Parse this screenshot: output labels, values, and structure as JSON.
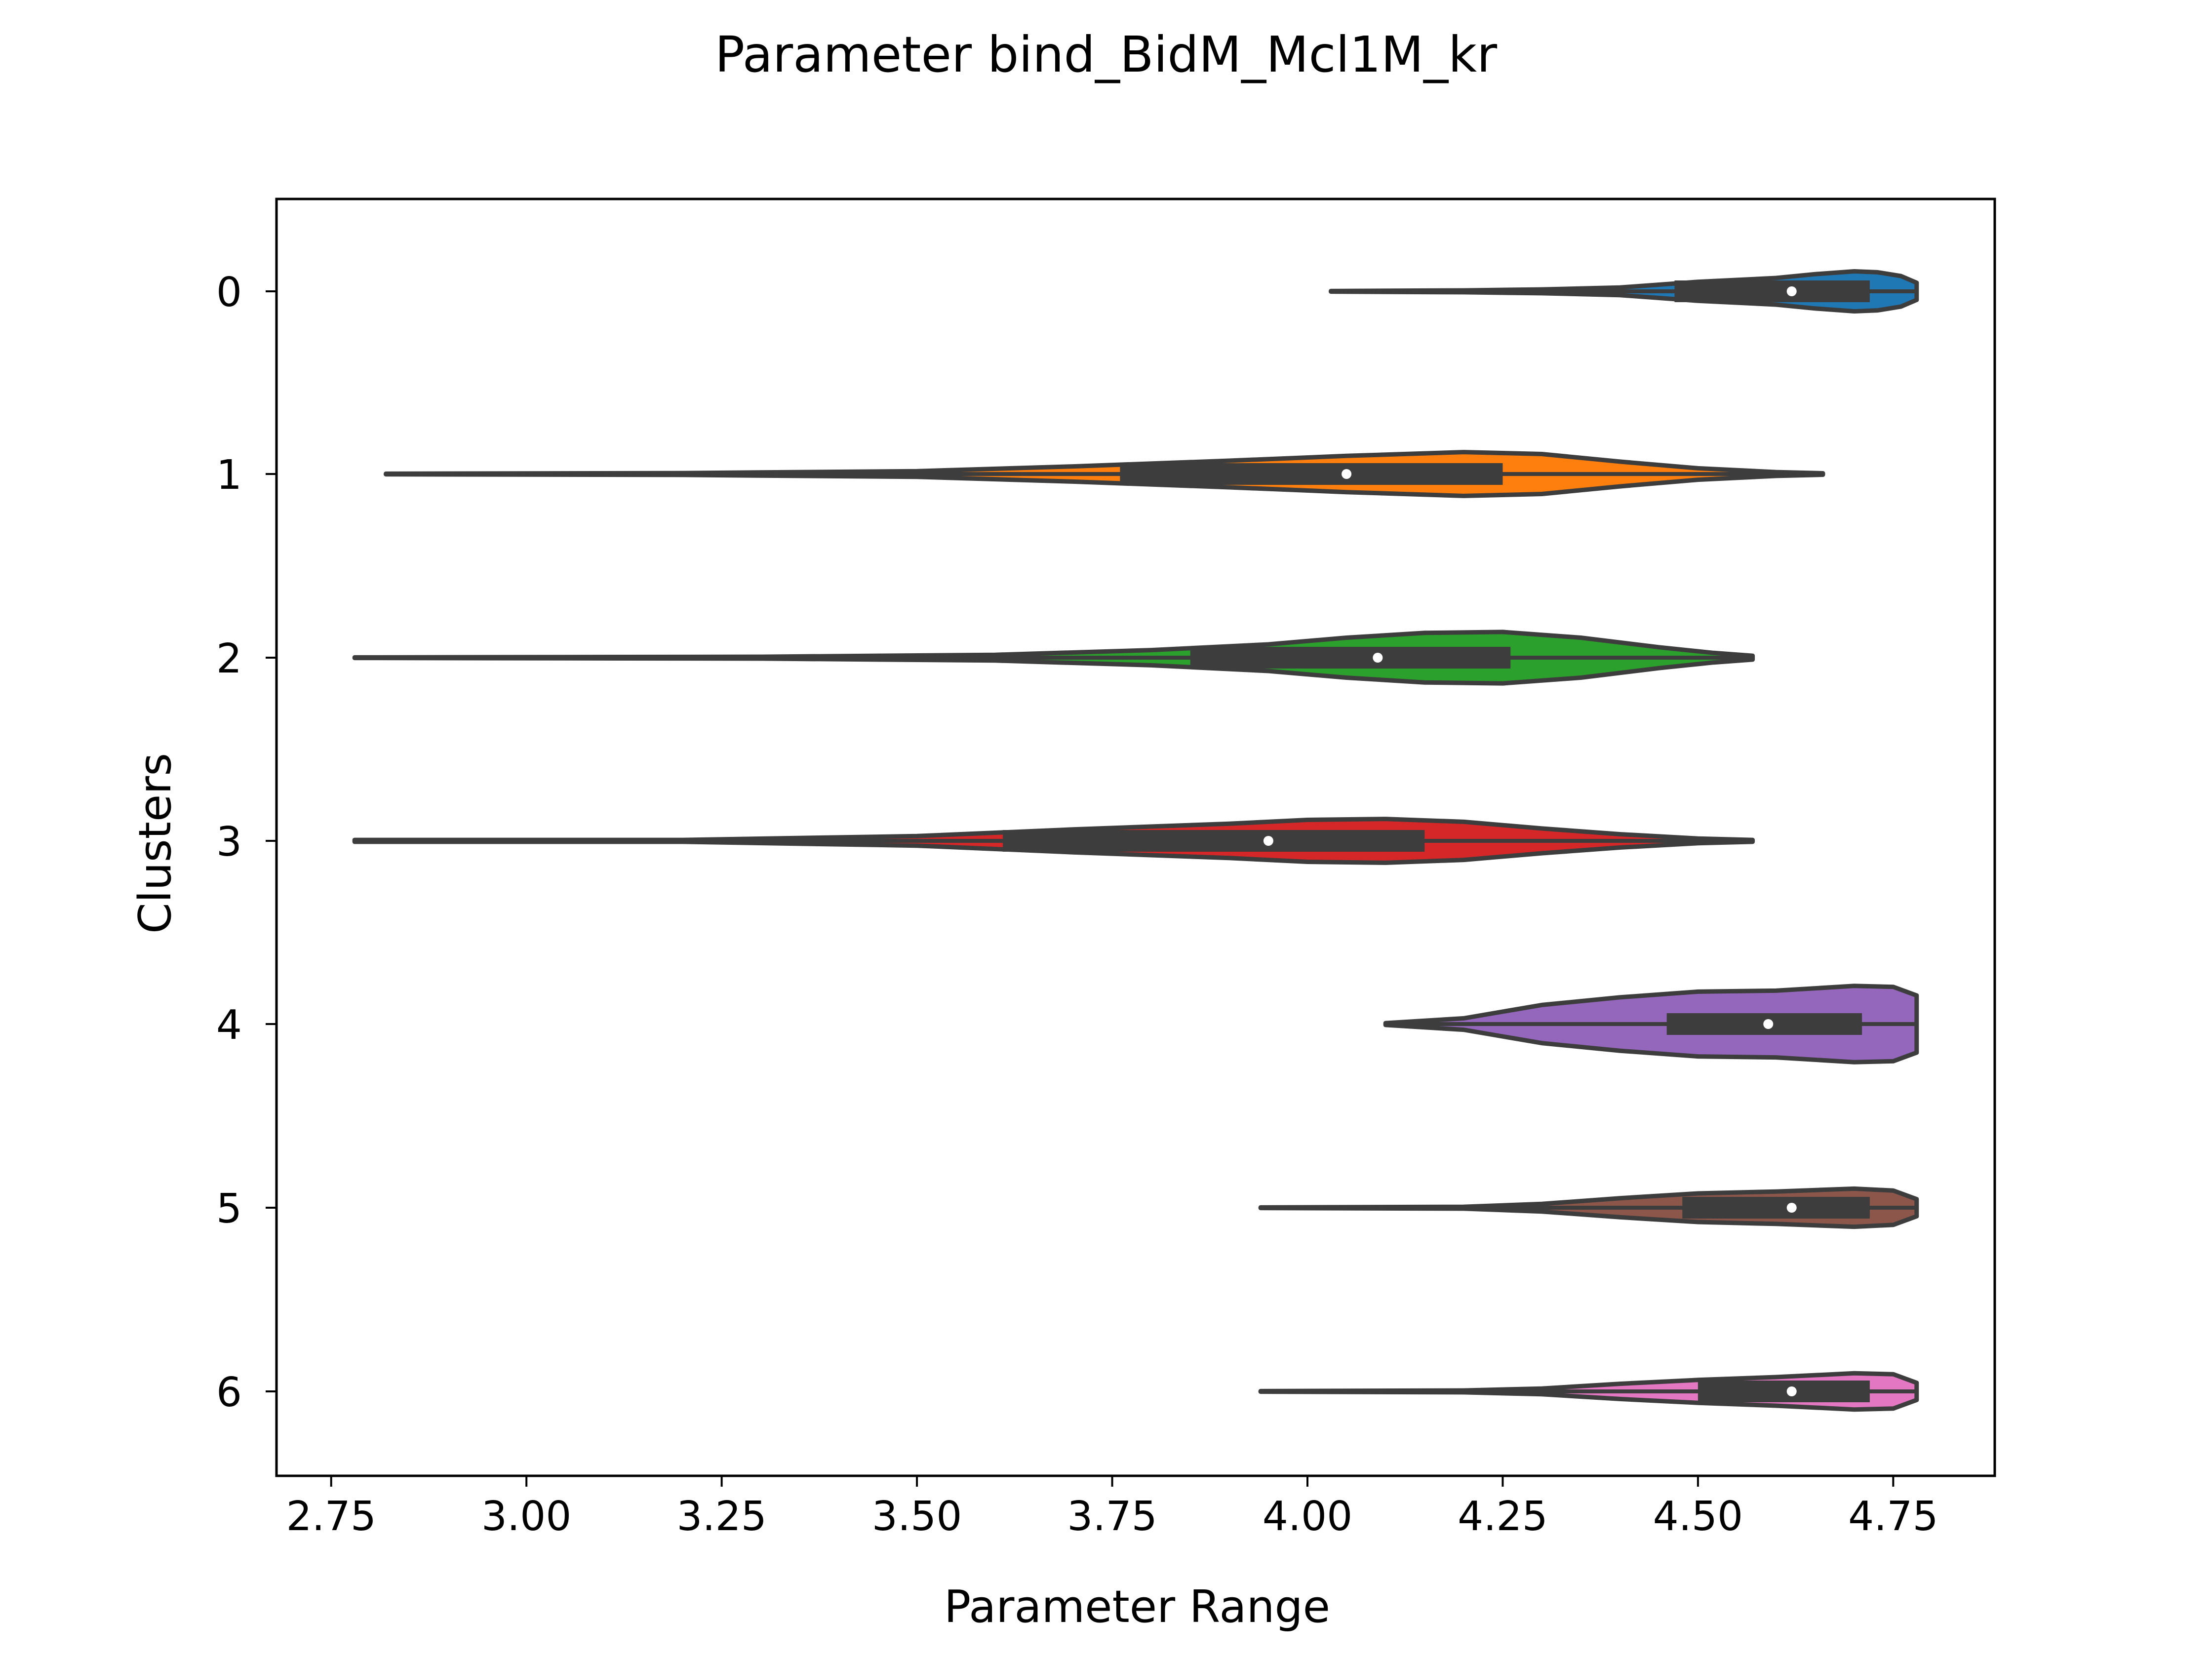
{
  "chart_data": {
    "type": "violin",
    "orientation": "horizontal",
    "title": "Parameter bind_BidM_Mcl1M_kr",
    "xlabel": "Parameter Range",
    "ylabel": "Clusters",
    "xlim": [
      2.68,
      4.88
    ],
    "x_ticks": [
      2.75,
      3.0,
      3.25,
      3.5,
      3.75,
      4.0,
      4.25,
      4.5,
      4.75
    ],
    "x_tick_labels": [
      "2.75",
      "3.00",
      "3.25",
      "3.50",
      "3.75",
      "4.00",
      "4.25",
      "4.50",
      "4.75"
    ],
    "categories": [
      "0",
      "1",
      "2",
      "3",
      "4",
      "5",
      "6"
    ],
    "grid": false,
    "legend": "none",
    "series": [
      {
        "category": "0",
        "color": "#1f77b4",
        "min": 4.03,
        "q1": 4.47,
        "median": 4.62,
        "q3": 4.72,
        "max": 4.78,
        "lower_whisker": 4.03,
        "upper_whisker": 4.78,
        "density": [
          [
            4.03,
            0.003
          ],
          [
            4.2,
            0.01
          ],
          [
            4.3,
            0.02
          ],
          [
            4.4,
            0.04
          ],
          [
            4.5,
            0.1
          ],
          [
            4.6,
            0.14
          ],
          [
            4.65,
            0.18
          ],
          [
            4.7,
            0.21
          ],
          [
            4.73,
            0.2
          ],
          [
            4.76,
            0.16
          ],
          [
            4.78,
            0.09
          ]
        ]
      },
      {
        "category": "1",
        "color": "#ff7f0e",
        "min": 2.82,
        "q1": 3.76,
        "median": 4.05,
        "q3": 4.25,
        "max": 4.66,
        "lower_whisker": 2.82,
        "upper_whisker": 4.66,
        "density": [
          [
            2.82,
            0.003
          ],
          [
            3.2,
            0.01
          ],
          [
            3.5,
            0.03
          ],
          [
            3.7,
            0.08
          ],
          [
            3.9,
            0.14
          ],
          [
            4.05,
            0.19
          ],
          [
            4.2,
            0.23
          ],
          [
            4.3,
            0.21
          ],
          [
            4.4,
            0.13
          ],
          [
            4.5,
            0.06
          ],
          [
            4.6,
            0.02
          ],
          [
            4.66,
            0.008
          ]
        ]
      },
      {
        "category": "2",
        "color": "#2ca02c",
        "min": 2.78,
        "q1": 3.85,
        "median": 4.09,
        "q3": 4.26,
        "max": 4.57,
        "lower_whisker": 2.78,
        "upper_whisker": 4.57,
        "density": [
          [
            2.78,
            0.003
          ],
          [
            3.3,
            0.01
          ],
          [
            3.6,
            0.03
          ],
          [
            3.8,
            0.08
          ],
          [
            3.95,
            0.14
          ],
          [
            4.05,
            0.21
          ],
          [
            4.15,
            0.26
          ],
          [
            4.25,
            0.27
          ],
          [
            4.35,
            0.21
          ],
          [
            4.45,
            0.11
          ],
          [
            4.52,
            0.05
          ],
          [
            4.57,
            0.02
          ]
        ]
      },
      {
        "category": "3",
        "color": "#d62728",
        "min": 2.78,
        "q1": 3.61,
        "median": 3.95,
        "q3": 4.15,
        "max": 4.57,
        "lower_whisker": 2.78,
        "upper_whisker": 4.57,
        "density": [
          [
            2.78,
            0.01
          ],
          [
            3.2,
            0.01
          ],
          [
            3.5,
            0.05
          ],
          [
            3.7,
            0.12
          ],
          [
            3.9,
            0.18
          ],
          [
            4.0,
            0.22
          ],
          [
            4.1,
            0.23
          ],
          [
            4.2,
            0.2
          ],
          [
            4.3,
            0.13
          ],
          [
            4.4,
            0.07
          ],
          [
            4.5,
            0.025
          ],
          [
            4.57,
            0.01
          ]
        ]
      },
      {
        "category": "4",
        "color": "#9467bd",
        "min": 4.1,
        "q1": 4.46,
        "median": 4.59,
        "q3": 4.71,
        "max": 4.78,
        "lower_whisker": 4.1,
        "upper_whisker": 4.78,
        "density": [
          [
            4.1,
            0.01
          ],
          [
            4.2,
            0.06
          ],
          [
            4.3,
            0.2
          ],
          [
            4.4,
            0.28
          ],
          [
            4.5,
            0.34
          ],
          [
            4.6,
            0.35
          ],
          [
            4.7,
            0.4
          ],
          [
            4.75,
            0.39
          ],
          [
            4.78,
            0.3
          ]
        ]
      },
      {
        "category": "5",
        "color": "#8c564b",
        "min": 3.94,
        "q1": 4.48,
        "median": 4.62,
        "q3": 4.72,
        "max": 4.78,
        "lower_whisker": 3.94,
        "upper_whisker": 4.78,
        "density": [
          [
            3.94,
            0.003
          ],
          [
            4.2,
            0.01
          ],
          [
            4.3,
            0.04
          ],
          [
            4.4,
            0.1
          ],
          [
            4.5,
            0.15
          ],
          [
            4.6,
            0.17
          ],
          [
            4.7,
            0.2
          ],
          [
            4.75,
            0.18
          ],
          [
            4.78,
            0.09
          ]
        ]
      },
      {
        "category": "6",
        "color": "#e377c2",
        "min": 3.94,
        "q1": 4.5,
        "median": 4.62,
        "q3": 4.72,
        "max": 4.78,
        "lower_whisker": 3.94,
        "upper_whisker": 4.78,
        "density": [
          [
            3.94,
            0.003
          ],
          [
            4.2,
            0.01
          ],
          [
            4.3,
            0.03
          ],
          [
            4.4,
            0.08
          ],
          [
            4.5,
            0.12
          ],
          [
            4.6,
            0.15
          ],
          [
            4.7,
            0.19
          ],
          [
            4.75,
            0.18
          ],
          [
            4.78,
            0.09
          ]
        ]
      }
    ]
  }
}
